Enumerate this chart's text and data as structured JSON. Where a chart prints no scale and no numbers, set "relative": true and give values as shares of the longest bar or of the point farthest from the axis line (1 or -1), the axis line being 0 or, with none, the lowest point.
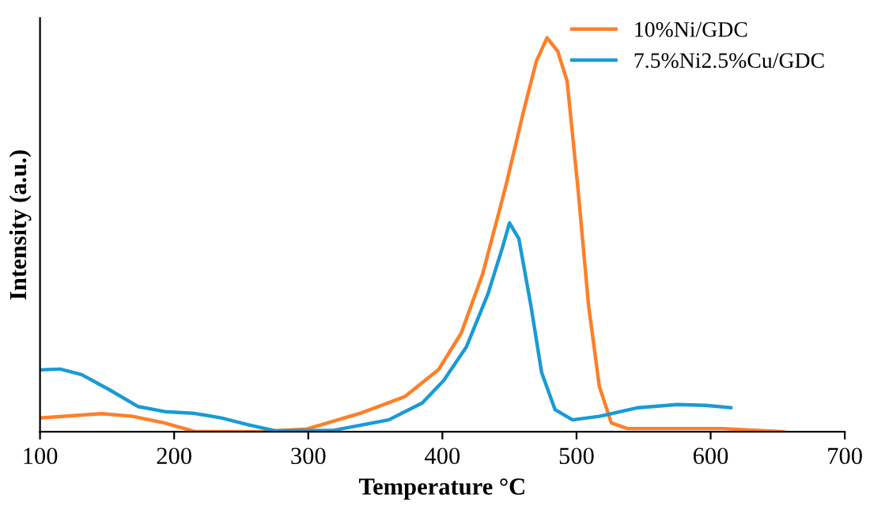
{
  "chart_data": {
    "type": "line",
    "relative": true,
    "xlabel": "Temperature °C",
    "ylabel": "Intensity (a.u.)",
    "xlim": [
      100,
      700
    ],
    "xticks": [
      100,
      200,
      300,
      400,
      500,
      600,
      700
    ],
    "tick_labels": "x",
    "grid": false,
    "legend": "top right",
    "marker": "none",
    "line_style": "solid",
    "series": [
      {
        "name": "10%Ni/GDC",
        "color": "#ff7f27",
        "x": [
          100,
          146,
          169,
          193,
          216,
          264,
          299,
          339,
          372,
          397,
          414,
          430,
          447,
          461,
          470,
          478,
          486,
          493,
          501,
          509,
          517,
          526,
          538,
          609,
          654
        ],
        "values": [
          0.035,
          0.046,
          0.039,
          0.022,
          0,
          0,
          0.007,
          0.047,
          0.089,
          0.157,
          0.25,
          0.4,
          0.62,
          0.82,
          0.94,
          1.0,
          0.966,
          0.89,
          0.62,
          0.32,
          0.115,
          0.022,
          0.008,
          0.008,
          0
        ]
      },
      {
        "name": "7.5%Ni2.5%Cu/GDC",
        "color": "#1a9ad6",
        "x": [
          100,
          115,
          131,
          152,
          173,
          193,
          214,
          235,
          256,
          276,
          318,
          360,
          385,
          401,
          418,
          434,
          445,
          450,
          457,
          466,
          474,
          484,
          497,
          517,
          546,
          575,
          596,
          615
        ],
        "values": [
          0.157,
          0.159,
          0.145,
          0.106,
          0.064,
          0.051,
          0.047,
          0.035,
          0.017,
          0.002,
          0.003,
          0.03,
          0.073,
          0.13,
          0.216,
          0.35,
          0.47,
          0.53,
          0.49,
          0.32,
          0.15,
          0.056,
          0.03,
          0.039,
          0.061,
          0.069,
          0.067,
          0.061
        ]
      }
    ]
  }
}
